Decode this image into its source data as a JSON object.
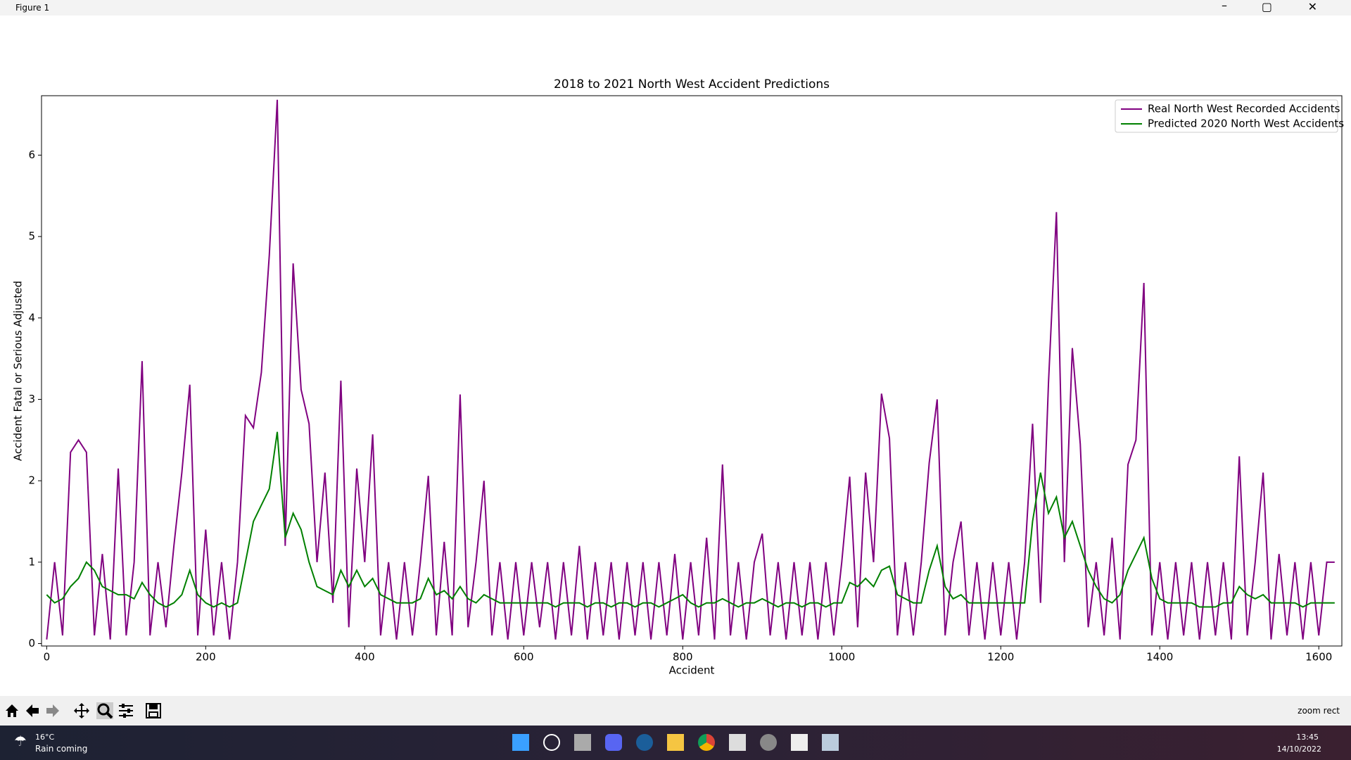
{
  "window": {
    "title": "Figure 1"
  },
  "chart_data": {
    "type": "line",
    "title": "2018 to 2021 North West Accident Predictions",
    "x_label": "Accident",
    "y_label": "Accident Fatal or Serious Adjusted",
    "x": [
      0,
      10,
      20,
      30,
      40,
      50,
      60,
      70,
      80,
      90,
      100,
      110,
      120,
      130,
      140,
      150,
      160,
      170,
      180,
      190,
      200,
      210,
      220,
      230,
      240,
      250,
      260,
      270,
      280,
      290,
      300,
      310,
      320,
      330,
      340,
      350,
      360,
      370,
      380,
      390,
      400,
      410,
      420,
      430,
      440,
      450,
      460,
      470,
      480,
      490,
      500,
      510,
      520,
      530,
      540,
      550,
      560,
      570,
      580,
      590,
      600,
      610,
      620,
      630,
      640,
      650,
      660,
      670,
      680,
      690,
      700,
      710,
      720,
      730,
      740,
      750,
      760,
      770,
      780,
      790,
      800,
      810,
      820,
      830,
      840,
      850,
      860,
      870,
      880,
      890,
      900,
      910,
      920,
      930,
      940,
      950,
      960,
      970,
      980,
      990,
      1000,
      1010,
      1020,
      1030,
      1040,
      1050,
      1060,
      1070,
      1080,
      1090,
      1100,
      1110,
      1120,
      1130,
      1140,
      1150,
      1160,
      1170,
      1180,
      1190,
      1200,
      1210,
      1220,
      1230,
      1240,
      1250,
      1260,
      1270,
      1280,
      1290,
      1300,
      1310,
      1320,
      1330,
      1340,
      1350,
      1360,
      1370,
      1380,
      1390,
      1400,
      1410,
      1420,
      1430,
      1440,
      1450,
      1460,
      1470,
      1480,
      1490,
      1500,
      1510,
      1520,
      1530,
      1540,
      1550,
      1560,
      1570,
      1580,
      1590,
      1600,
      1610,
      1620
    ],
    "series": [
      {
        "name": "Real North West Recorded Accidents",
        "color": "#800080",
        "values": [
          0.05,
          1.0,
          0.1,
          2.35,
          2.5,
          2.35,
          0.1,
          1.1,
          0.05,
          2.15,
          0.1,
          1.0,
          3.47,
          0.1,
          1.0,
          0.2,
          1.2,
          2.1,
          3.18,
          0.1,
          1.4,
          0.1,
          1.0,
          0.05,
          1.0,
          2.8,
          2.65,
          3.33,
          4.77,
          6.68,
          1.2,
          4.67,
          3.12,
          2.7,
          1.0,
          2.1,
          0.5,
          3.23,
          0.2,
          2.15,
          1.0,
          2.57,
          0.1,
          1.0,
          0.05,
          1.0,
          0.1,
          1.0,
          2.06,
          0.1,
          1.25,
          0.1,
          3.06,
          0.2,
          1.0,
          2.0,
          0.1,
          1.0,
          0.05,
          1.0,
          0.1,
          1.0,
          0.2,
          1.0,
          0.05,
          1.0,
          0.1,
          1.2,
          0.05,
          1.0,
          0.1,
          1.0,
          0.05,
          1.0,
          0.1,
          1.0,
          0.05,
          1.0,
          0.1,
          1.1,
          0.05,
          1.0,
          0.1,
          1.3,
          0.05,
          2.2,
          0.1,
          1.0,
          0.05,
          1.0,
          1.35,
          0.1,
          1.0,
          0.05,
          1.0,
          0.1,
          1.0,
          0.05,
          1.0,
          0.1,
          1.0,
          2.05,
          0.2,
          2.1,
          1.0,
          3.07,
          2.52,
          0.1,
          1.0,
          0.1,
          1.0,
          2.22,
          3.0,
          0.1,
          1.0,
          1.5,
          0.1,
          1.0,
          0.05,
          1.0,
          0.1,
          1.0,
          0.05,
          1.0,
          2.7,
          0.5,
          3.2,
          5.3,
          1.0,
          3.63,
          2.45,
          0.2,
          1.0,
          0.1,
          1.3,
          0.05,
          2.2,
          2.5,
          4.43,
          0.1,
          1.0,
          0.05,
          1.0,
          0.1,
          1.0,
          0.05,
          1.0,
          0.1,
          1.0,
          0.05,
          2.3,
          0.1,
          1.0,
          2.1,
          0.05,
          1.1,
          0.1,
          1.0,
          0.05,
          1.0,
          0.1,
          1.0,
          1.0
        ]
      },
      {
        "name": "Predicted 2020 North West Accidents",
        "color": "#008000",
        "values": [
          0.6,
          0.5,
          0.55,
          0.7,
          0.8,
          1.0,
          0.9,
          0.7,
          0.65,
          0.6,
          0.6,
          0.55,
          0.75,
          0.6,
          0.5,
          0.45,
          0.5,
          0.6,
          0.9,
          0.6,
          0.5,
          0.45,
          0.5,
          0.45,
          0.5,
          1.0,
          1.5,
          1.7,
          1.9,
          2.6,
          1.3,
          1.6,
          1.4,
          1.0,
          0.7,
          0.65,
          0.6,
          0.9,
          0.7,
          0.9,
          0.7,
          0.8,
          0.6,
          0.55,
          0.5,
          0.5,
          0.5,
          0.55,
          0.8,
          0.6,
          0.65,
          0.55,
          0.7,
          0.55,
          0.5,
          0.6,
          0.55,
          0.5,
          0.5,
          0.5,
          0.5,
          0.5,
          0.5,
          0.5,
          0.45,
          0.5,
          0.5,
          0.5,
          0.45,
          0.5,
          0.5,
          0.45,
          0.5,
          0.5,
          0.45,
          0.5,
          0.5,
          0.45,
          0.5,
          0.55,
          0.6,
          0.5,
          0.45,
          0.5,
          0.5,
          0.55,
          0.5,
          0.45,
          0.5,
          0.5,
          0.55,
          0.5,
          0.45,
          0.5,
          0.5,
          0.45,
          0.5,
          0.5,
          0.45,
          0.5,
          0.5,
          0.75,
          0.7,
          0.8,
          0.7,
          0.9,
          0.95,
          0.6,
          0.55,
          0.5,
          0.5,
          0.9,
          1.2,
          0.7,
          0.55,
          0.6,
          0.5,
          0.5,
          0.5,
          0.5,
          0.5,
          0.5,
          0.5,
          0.5,
          1.5,
          2.1,
          1.6,
          1.8,
          1.3,
          1.5,
          1.2,
          0.9,
          0.7,
          0.55,
          0.5,
          0.6,
          0.9,
          1.1,
          1.3,
          0.8,
          0.55,
          0.5,
          0.5,
          0.5,
          0.5,
          0.45,
          0.45,
          0.45,
          0.5,
          0.5,
          0.7,
          0.6,
          0.55,
          0.6,
          0.5,
          0.5,
          0.5,
          0.5,
          0.45,
          0.5,
          0.5,
          0.5,
          0.5
        ]
      }
    ],
    "xlim": [
      -6.5,
      1629
    ],
    "ylim": [
      -0.03,
      6.73
    ],
    "xticks": [
      0,
      200,
      400,
      600,
      800,
      1000,
      1200,
      1400,
      1600
    ],
    "yticks": [
      0,
      1,
      2,
      3,
      4,
      5,
      6
    ],
    "legend": "upper right"
  },
  "toolbar": {
    "status": "zoom rect"
  },
  "taskbar": {
    "temperature": "16°C",
    "weather": "Rain coming",
    "time": "13:45",
    "date": "14/10/2022"
  }
}
